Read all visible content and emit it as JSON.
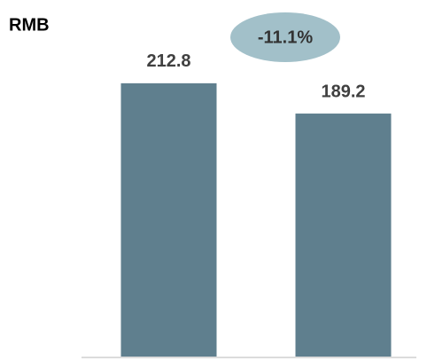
{
  "chart_data": {
    "type": "bar",
    "y_label": "RMB",
    "annotation": "-11.1%",
    "categories": [
      null,
      null
    ],
    "values": [
      212.8,
      189.2
    ],
    "color": "#5f7f8e",
    "ylim": [
      0,
      250
    ]
  }
}
